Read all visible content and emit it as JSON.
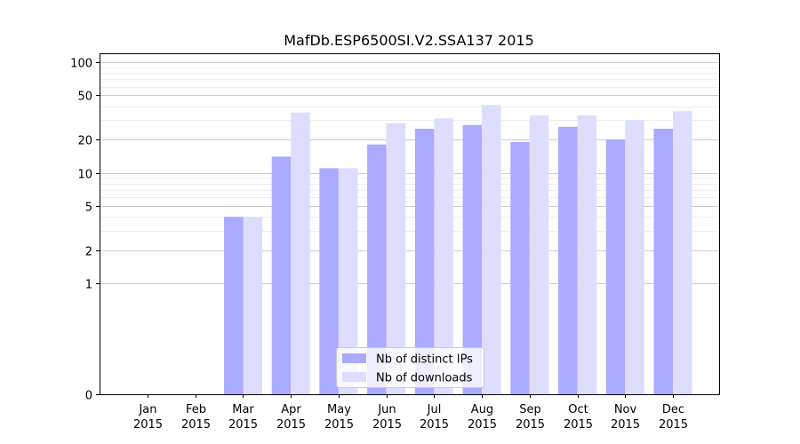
{
  "chart_data": {
    "type": "bar",
    "title": "MafDb.ESP6500SI.V2.SSA137 2015",
    "xlabel": "",
    "ylabel": "",
    "yscale": "symlog",
    "ylim": [
      0,
      120
    ],
    "yticks": [
      {
        "value": 0,
        "label": "0"
      },
      {
        "value": 1,
        "label": "1"
      },
      {
        "value": 2,
        "label": "2"
      },
      {
        "value": 5,
        "label": "5"
      },
      {
        "value": 10,
        "label": "10"
      },
      {
        "value": 20,
        "label": "20"
      },
      {
        "value": 50,
        "label": "50"
      },
      {
        "value": 100,
        "label": "100"
      }
    ],
    "categories": [
      {
        "month": "Jan",
        "year": "2015"
      },
      {
        "month": "Feb",
        "year": "2015"
      },
      {
        "month": "Mar",
        "year": "2015"
      },
      {
        "month": "Apr",
        "year": "2015"
      },
      {
        "month": "May",
        "year": "2015"
      },
      {
        "month": "Jun",
        "year": "2015"
      },
      {
        "month": "Jul",
        "year": "2015"
      },
      {
        "month": "Aug",
        "year": "2015"
      },
      {
        "month": "Sep",
        "year": "2015"
      },
      {
        "month": "Oct",
        "year": "2015"
      },
      {
        "month": "Nov",
        "year": "2015"
      },
      {
        "month": "Dec",
        "year": "2015"
      }
    ],
    "series": [
      {
        "name": "Nb of distinct IPs",
        "color": "#aaaaff",
        "values": [
          0,
          0,
          4,
          14,
          11,
          18,
          25,
          27,
          19,
          26,
          20,
          25
        ]
      },
      {
        "name": "Nb of downloads",
        "color": "#ddddff",
        "values": [
          0,
          0,
          4,
          35,
          11,
          28,
          31,
          41,
          33,
          33,
          30,
          36
        ]
      }
    ],
    "legend": "lower-center",
    "grid": true
  }
}
